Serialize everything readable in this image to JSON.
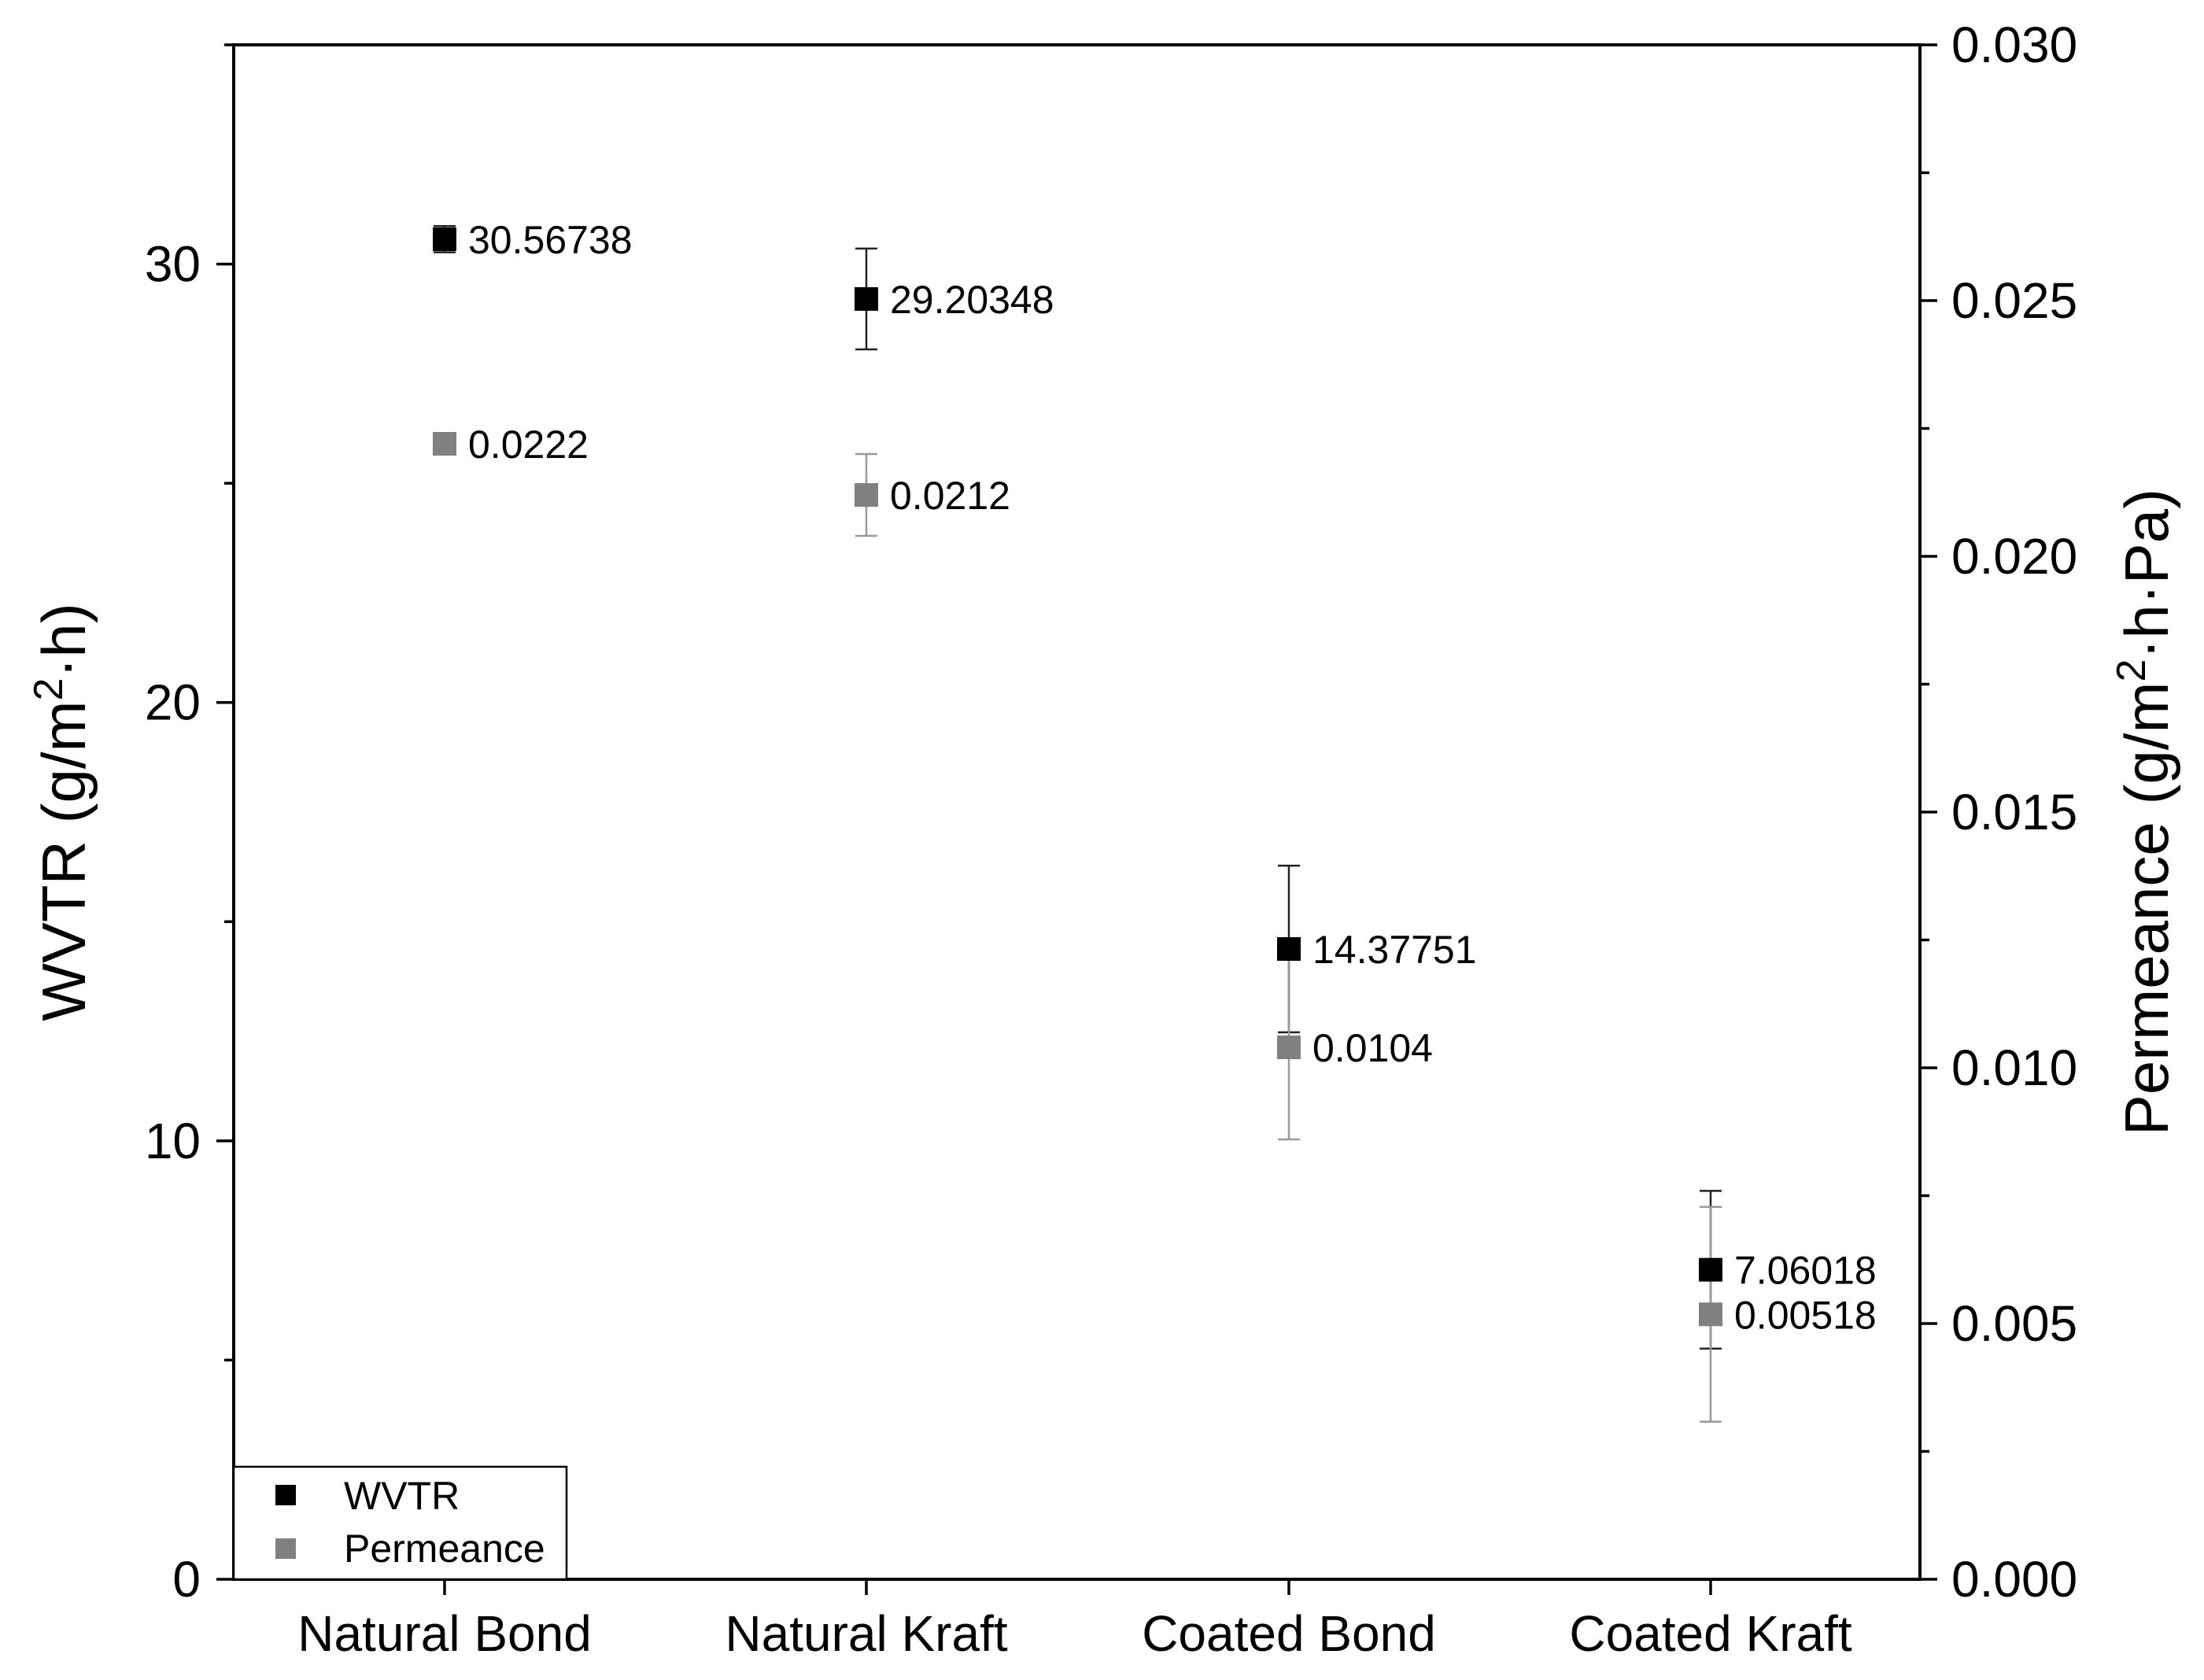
{
  "chart_data": {
    "type": "scatter",
    "categories": [
      "Natural Bond",
      "Natural Kraft",
      "Coated Bond",
      "Coated Kraft"
    ],
    "left_axis": {
      "label_prefix": "WVTR (g/m",
      "label_sup": "2",
      "label_suffix": "·h)",
      "ylim": [
        0,
        35
      ],
      "ticks": [
        "0",
        "10",
        "20",
        "30"
      ],
      "tick_values": [
        0,
        10,
        20,
        30
      ],
      "minor_step": 5
    },
    "right_axis": {
      "label_prefix": "Permeance (g/m",
      "label_sup": "2",
      "label_suffix": "·h·Pa)",
      "ylim": [
        0,
        0.03
      ],
      "ticks": [
        "0.000",
        "0.005",
        "0.010",
        "0.015",
        "0.020",
        "0.025",
        "0.030"
      ],
      "tick_values": [
        0,
        0.005,
        0.01,
        0.015,
        0.02,
        0.025,
        0.03
      ],
      "minor_step": 0.0025
    },
    "series": [
      {
        "name": "WVTR",
        "axis": "left",
        "color": "#000000",
        "values": [
          30.56738,
          29.20348,
          14.37751,
          7.06018
        ],
        "labels": [
          "30.56738",
          "29.20348",
          "14.37751",
          "7.06018"
        ],
        "error": [
          0.3,
          1.15,
          1.9,
          1.8
        ]
      },
      {
        "name": "Permeance",
        "axis": "right",
        "color": "#808080",
        "values": [
          0.0222,
          0.0212,
          0.0104,
          0.00518
        ],
        "labels": [
          "0.0222",
          "0.0212",
          "0.0104",
          "0.00518"
        ],
        "error": [
          0.0002,
          0.0008,
          0.0018,
          0.0021
        ]
      }
    ],
    "legend_position": "bottom-left",
    "grid": false
  }
}
